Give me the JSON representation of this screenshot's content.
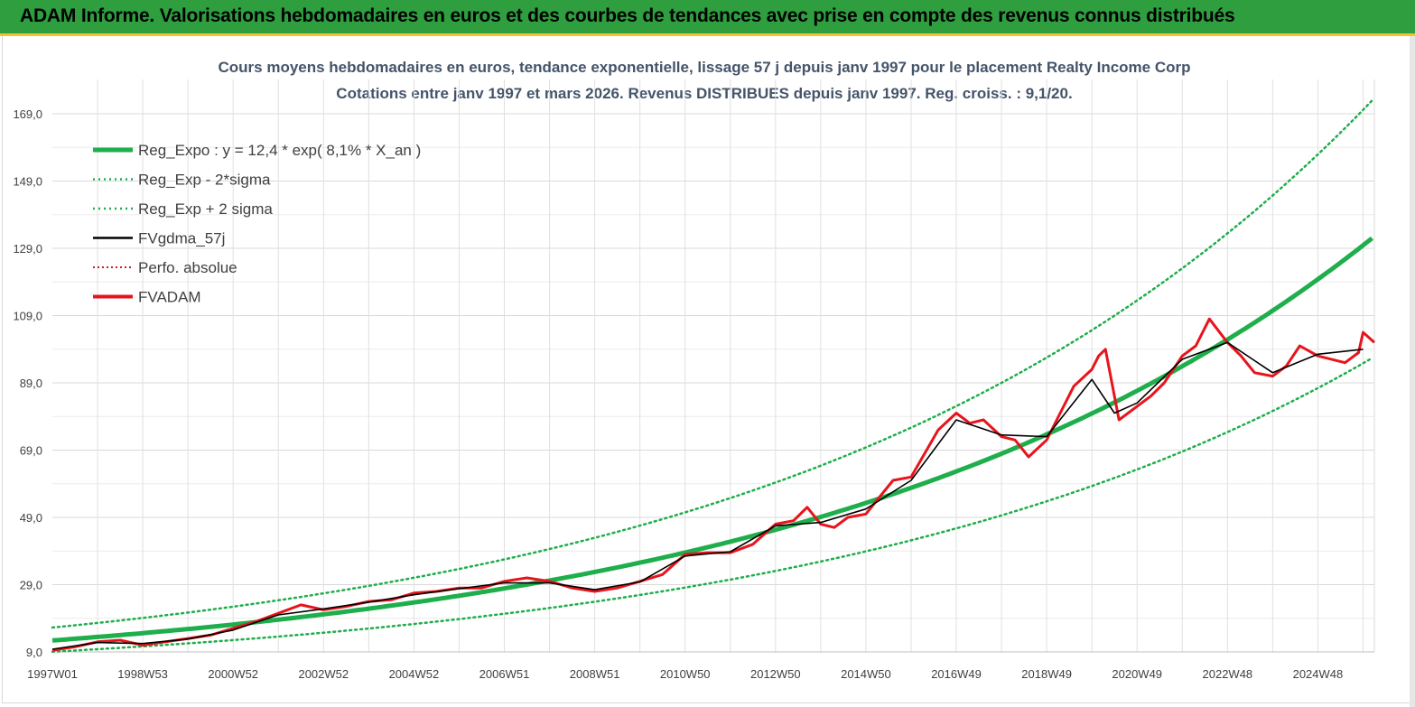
{
  "header": {
    "title": "ADAM Informe. Valorisations hebdomadaires en euros et des courbes de tendances avec prise en compte des revenus connus distribués"
  },
  "colors": {
    "banner": "#2e9e3e",
    "reg_expo": "#1fae4c",
    "sigma": "#1fae4c",
    "fvgdma": "#000000",
    "fvadam": "#e8141c",
    "perfo": "#c00000"
  },
  "chart_data": {
    "type": "line",
    "title": "Cours moyens hebdomadaires en euros, tendance exponentielle, lissage 57 j depuis janv 1997 pour le placement Realty Income Corp",
    "subtitle": "Cotations entre janv 1997 et mars 2026. Revenus DISTRIBUES depuis janv 1997. Reg. croiss. : 9,1/20.",
    "xlabel": "",
    "ylabel": "",
    "ylim": [
      9,
      169
    ],
    "xlim": [
      1997.0,
      2026.25
    ],
    "y_ticks": [
      "9,0",
      "29,0",
      "49,0",
      "69,0",
      "89,0",
      "109,0",
      "129,0",
      "149,0",
      "169,0"
    ],
    "y_tick_values": [
      9,
      29,
      49,
      69,
      89,
      109,
      129,
      149,
      169
    ],
    "x_ticks": [
      "1997W01",
      "1998W53",
      "2000W52",
      "2002W52",
      "2004W52",
      "2006W51",
      "2008W51",
      "2010W50",
      "2012W50",
      "2014W50",
      "2016W49",
      "2018W49",
      "2020W49",
      "2022W48",
      "2024W48"
    ],
    "x_tick_values": [
      1997.0,
      1999.0,
      2001.0,
      2003.0,
      2005.0,
      2007.0,
      2009.0,
      2011.0,
      2013.0,
      2015.0,
      2017.0,
      2019.0,
      2021.0,
      2023.0,
      2025.0
    ],
    "grid": true,
    "legend_position": "top-left",
    "legend": [
      {
        "label": "Reg_Expo : y = 12,4 * exp( 8,1% *  X_an )",
        "style": "solid-thick",
        "color": "#1fae4c"
      },
      {
        "label": "Reg_Exp - 2*sigma",
        "style": "dotted",
        "color": "#1fae4c"
      },
      {
        "label": "Reg_Exp + 2 sigma",
        "style": "dotted",
        "color": "#1fae4c"
      },
      {
        "label": "FVgdma_57j",
        "style": "solid",
        "color": "#000000"
      },
      {
        "label": "Perfo. absolue",
        "style": "dotted-thin",
        "color": "#c00000"
      },
      {
        "label": "FVADAM",
        "style": "solid-thick",
        "color": "#e8141c"
      }
    ],
    "regression": {
      "a": 12.4,
      "rate": 0.081,
      "sigma_minus_factor": 0.73,
      "sigma_plus_factor": 1.31
    },
    "series": [
      {
        "name": "FVADAM",
        "x": [
          1997.0,
          1997.5,
          1998.0,
          1998.5,
          1999.0,
          1999.5,
          2000.0,
          2000.5,
          2001.0,
          2001.5,
          2002.0,
          2002.5,
          2003.0,
          2003.5,
          2004.0,
          2004.5,
          2005.0,
          2005.5,
          2006.0,
          2006.5,
          2007.0,
          2007.5,
          2008.0,
          2008.5,
          2009.0,
          2009.5,
          2010.0,
          2010.5,
          2011.0,
          2011.5,
          2012.0,
          2012.5,
          2013.0,
          2013.4,
          2013.7,
          2014.0,
          2014.3,
          2014.6,
          2015.0,
          2015.3,
          2015.6,
          2016.0,
          2016.3,
          2016.6,
          2017.0,
          2017.3,
          2017.6,
          2018.0,
          2018.3,
          2018.6,
          2019.0,
          2019.3,
          2019.6,
          2020.0,
          2020.15,
          2020.3,
          2020.6,
          2021.0,
          2021.3,
          2021.6,
          2022.0,
          2022.3,
          2022.6,
          2023.0,
          2023.3,
          2023.6,
          2024.0,
          2024.3,
          2024.6,
          2025.0,
          2025.3,
          2025.6,
          2025.9,
          2026.0,
          2026.25
        ],
        "values": [
          9.5,
          10.5,
          12.0,
          12.5,
          11.0,
          12.0,
          13.0,
          14.0,
          16.0,
          18.0,
          20.5,
          23.0,
          21.5,
          22.5,
          24.0,
          24.5,
          26.5,
          27.0,
          28.0,
          28.0,
          30.0,
          31.0,
          30.0,
          28.0,
          27.0,
          28.0,
          30.0,
          32.0,
          38.0,
          38.5,
          38.5,
          41.0,
          47.0,
          48.0,
          52.0,
          47.0,
          46.0,
          49.0,
          50.0,
          55.0,
          60.0,
          61.0,
          68.0,
          75.0,
          80.0,
          77.0,
          78.0,
          73.0,
          72.0,
          67.0,
          72.0,
          80.0,
          88.0,
          93.0,
          97.0,
          99.0,
          78.0,
          82.0,
          85.0,
          89.0,
          97.0,
          100.0,
          108.0,
          101.0,
          97.0,
          92.0,
          91.0,
          94.0,
          100.0,
          97.0,
          96.0,
          95.0,
          98.0,
          104.0,
          101.0
        ]
      },
      {
        "name": "FVgdma_57j",
        "x": [
          1997.0,
          1998.0,
          1999.0,
          2000.0,
          2001.0,
          2002.0,
          2003.0,
          2004.0,
          2005.0,
          2006.0,
          2007.0,
          2008.0,
          2009.0,
          2010.0,
          2011.0,
          2012.0,
          2013.0,
          2014.0,
          2015.0,
          2016.0,
          2017.0,
          2018.0,
          2019.0,
          2020.0,
          2020.5,
          2021.0,
          2022.0,
          2023.0,
          2024.0,
          2025.0,
          2026.0
        ],
        "values": [
          9.8,
          11.8,
          11.5,
          12.8,
          15.5,
          20.0,
          21.8,
          23.8,
          26.0,
          27.8,
          29.5,
          29.5,
          27.5,
          29.8,
          37.5,
          38.8,
          46.5,
          47.5,
          51.5,
          60.0,
          78.0,
          73.5,
          73.0,
          90.0,
          80.0,
          83.0,
          96.0,
          101.0,
          92.0,
          97.5,
          99.0
        ]
      }
    ]
  }
}
